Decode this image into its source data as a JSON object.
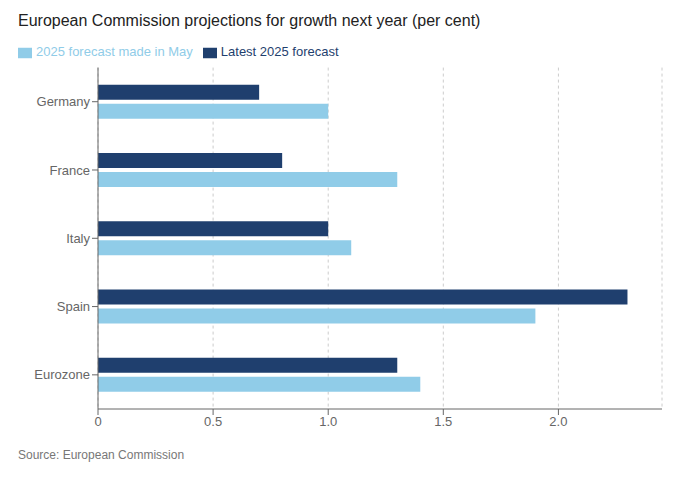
{
  "chart_data": {
    "type": "bar",
    "orientation": "horizontal",
    "title": "European Commission projections for growth next year (per cent)",
    "annotations": [
      "Source: European Commission"
    ],
    "categories": [
      "Germany",
      "France",
      "Italy",
      "Spain",
      "Eurozone"
    ],
    "series": [
      {
        "name": "Latest 2025 forecast",
        "color": "#1f3f6e",
        "values": [
          0.7,
          0.8,
          1.0,
          2.3,
          1.3
        ]
      },
      {
        "name": "2025 forecast made in May",
        "color": "#90cce8",
        "values": [
          1.0,
          1.3,
          1.1,
          1.9,
          1.4
        ]
      }
    ],
    "xlim": [
      0,
      2.45
    ],
    "xticks": [
      0,
      0.5,
      {
        "value": 1,
        "label": "1.0"
      },
      1.5,
      {
        "value": 2,
        "label": "2.0"
      }
    ],
    "grid": true,
    "legend": "upper left"
  }
}
